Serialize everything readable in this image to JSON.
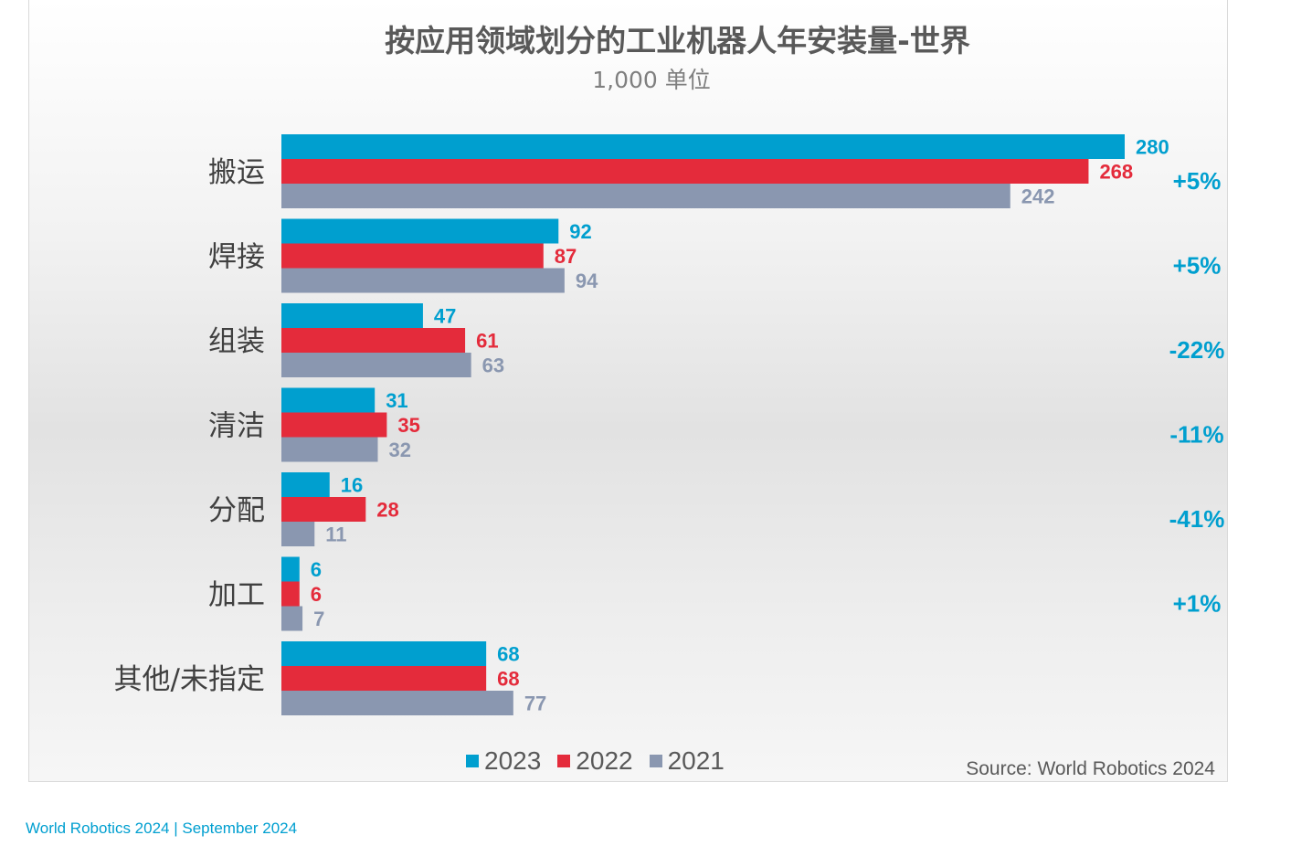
{
  "footer": {
    "text": "World Robotics 2024  | September 2024"
  },
  "source": "Source: World Robotics 2024",
  "chart_data": {
    "type": "bar",
    "orientation": "horizontal",
    "title": "按应用领域划分的工业机器人年安装量-世界",
    "subtitle": "1,000 单位",
    "categories": [
      "搬运",
      "焊接",
      "组装",
      "清洁",
      "分配",
      "加工",
      "其他/未指定"
    ],
    "series": [
      {
        "name": "2023",
        "color": "#009fcf",
        "values": [
          280,
          92,
          47,
          31,
          16,
          6,
          68
        ]
      },
      {
        "name": "2022",
        "color": "#e42b3b",
        "values": [
          268,
          87,
          61,
          35,
          28,
          6,
          68
        ]
      },
      {
        "name": "2021",
        "color": "#8a97b0",
        "values": [
          242,
          94,
          63,
          32,
          11,
          7,
          77
        ]
      }
    ],
    "growth": [
      "+5%",
      "+5%",
      "-22%",
      "-11%",
      "-41%",
      "+1%",
      ""
    ],
    "growth_color": "#009fcf",
    "xlim": [
      0,
      280
    ],
    "grid": false,
    "legend_position": "bottom"
  }
}
